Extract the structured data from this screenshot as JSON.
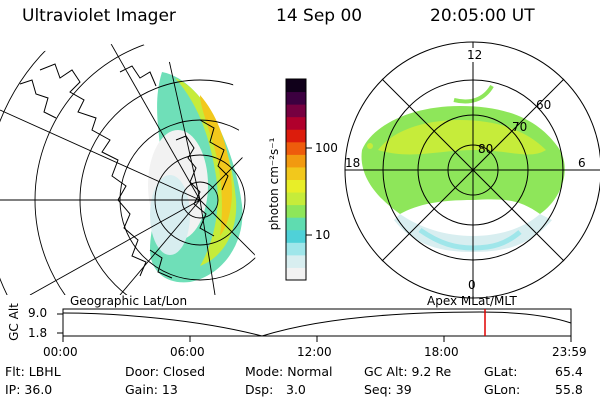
{
  "header": {
    "instrument": "Ultraviolet Imager",
    "date": "14 Sep 00",
    "time": "20:05:00 UT"
  },
  "colorbar": {
    "unit_label": "photon cm⁻²s⁻¹",
    "tick_100": "100",
    "tick_10": "10",
    "colors": [
      "#f2f2f2",
      "#d8eef0",
      "#9fe6ea",
      "#4fd1d8",
      "#5fdcb0",
      "#8ee65a",
      "#c6ec3a",
      "#e8ee28",
      "#f2c81c",
      "#f29a10",
      "#ee5c0c",
      "#dc1c0c",
      "#b0002c",
      "#760040",
      "#3c0040",
      "#10001a"
    ]
  },
  "geographic_panel": {
    "label": "Geographic Lat/Lon",
    "grid_color": "#000000"
  },
  "polar_panel": {
    "label": "Apex MLat/MLT",
    "mlt_labels": {
      "top": "12",
      "left": "18",
      "right": "6",
      "bottom": "0"
    },
    "lat_labels": [
      "60",
      "70",
      "80"
    ]
  },
  "orbit_plot": {
    "y_axis_label": "GC Alt",
    "y_ticks": [
      "9.0",
      "1.8"
    ],
    "x_ticks": [
      "00:00",
      "06:00",
      "12:00",
      "18:00",
      "23:59"
    ],
    "current_marker_color": "#e00000"
  },
  "info": {
    "filter": "Flt: LBHL",
    "ip": "IP: 36.0",
    "door": "Door: Closed",
    "gain": "Gain: 13",
    "mode": "Mode: Normal",
    "dsp_label": "Dsp:",
    "dsp_value": "3.0",
    "gc_alt": "GC Alt: 9.2 Re",
    "seq": "Seq: 39",
    "glat_label": "GLat:",
    "glat_value": "65.4",
    "glon_label": "GLon:",
    "glon_value": "55.8"
  }
}
